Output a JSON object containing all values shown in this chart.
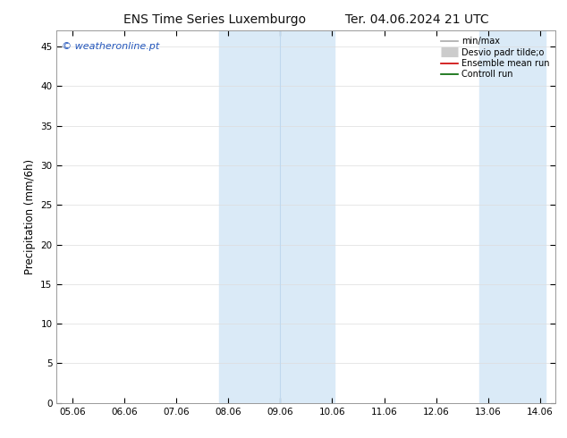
{
  "title_left": "ENS Time Series Luxemburgo",
  "title_right": "Ter. 04.06.2024 21 UTC",
  "ylabel": "Precipitation (mm/6h)",
  "watermark": "© weatheronline.pt",
  "ylim": [
    0,
    47
  ],
  "yticks": [
    0,
    5,
    10,
    15,
    20,
    25,
    30,
    35,
    40,
    45
  ],
  "xtick_labels": [
    "05.06",
    "06.06",
    "07.06",
    "08.06",
    "09.06",
    "10.06",
    "11.06",
    "12.06",
    "13.06",
    "14.06"
  ],
  "xtick_positions": [
    0,
    1,
    2,
    3,
    4,
    5,
    6,
    7,
    8,
    9
  ],
  "xlim": [
    -0.3,
    9.3
  ],
  "shaded_regions": [
    {
      "xmin": 2.83,
      "xmax": 5.05
    },
    {
      "xmin": 7.83,
      "xmax": 9.1
    }
  ],
  "shade_color": "#daeaf7",
  "divider_line_x": 4.0,
  "background_color": "#ffffff",
  "plot_bg_color": "#ffffff",
  "legend_items": [
    {
      "label": "min/max",
      "color": "#aaaaaa",
      "lw": 1.2
    },
    {
      "label": "Desvio padr tilde;o",
      "color": "#cccccc",
      "lw": 8
    },
    {
      "label": "Ensemble mean run",
      "color": "#cc0000",
      "lw": 1.2
    },
    {
      "label": "Controll run",
      "color": "#006600",
      "lw": 1.2
    }
  ],
  "title_fontsize": 10,
  "tick_fontsize": 7.5,
  "ylabel_fontsize": 8.5,
  "watermark_color": "#2255bb",
  "watermark_fontsize": 8,
  "grid_color": "#dddddd",
  "spine_color": "#999999",
  "legend_fontsize": 7
}
